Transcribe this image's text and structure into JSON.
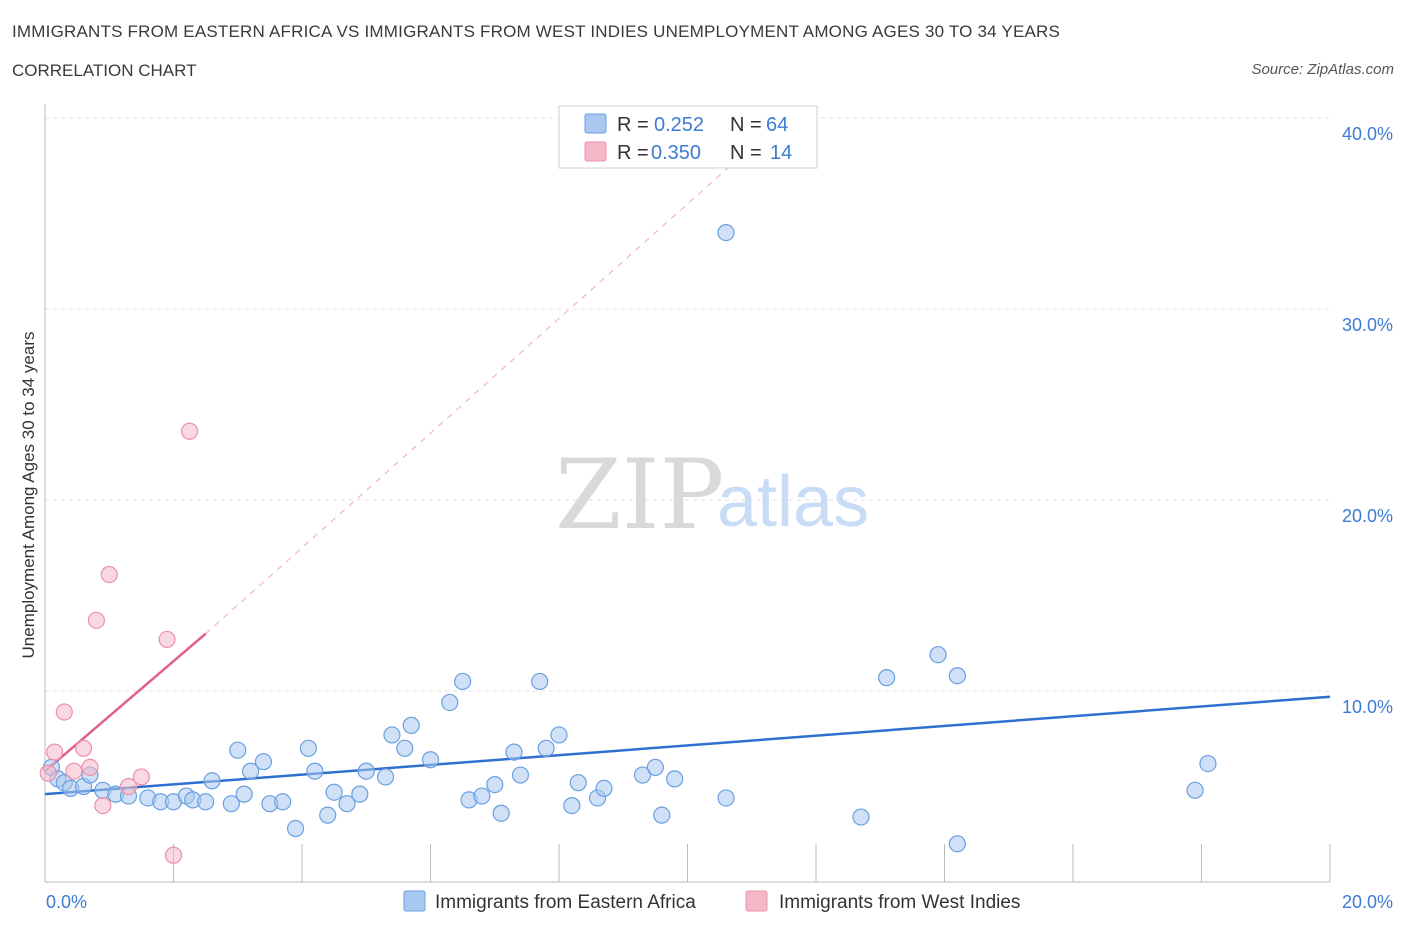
{
  "header": {
    "title": "IMMIGRANTS FROM EASTERN AFRICA VS IMMIGRANTS FROM WEST INDIES UNEMPLOYMENT AMONG AGES 30 TO 34 YEARS",
    "subtitle": "CORRELATION CHART",
    "source": "Source: ZipAtlas.com"
  },
  "watermark": {
    "zip": "ZIP",
    "atlas": "atlas"
  },
  "legend": {
    "rows": [
      {
        "r_label": "R =",
        "r_value": "0.252",
        "n_label": "N =",
        "n_value": "64",
        "color": "#a9c8f0"
      },
      {
        "r_label": "R =",
        "r_value": "0.350",
        "n_label": "N =",
        "n_value": "14",
        "color": "#f5b8c8"
      }
    ]
  },
  "bottom_legend": {
    "items": [
      {
        "label": "Immigrants from Eastern Africa",
        "color": "#a9c8f0"
      },
      {
        "label": "Immigrants from West Indies",
        "color": "#f5b8c8"
      }
    ]
  },
  "chart_data": {
    "type": "scatter",
    "title": "IMMIGRANTS FROM EASTERN AFRICA VS IMMIGRANTS FROM WEST INDIES UNEMPLOYMENT AMONG AGES 30 TO 34 YEARS",
    "subtitle": "CORRELATION CHART",
    "xlabel": "",
    "ylabel": "Unemployment Among Ages 30 to 34 years",
    "xlim": [
      0,
      20
    ],
    "ylim": [
      0,
      40
    ],
    "x_tick_labels": [
      "0.0%",
      "20.0%"
    ],
    "y_tick_labels": [
      "10.0%",
      "20.0%",
      "30.0%",
      "40.0%"
    ],
    "y_ticks": [
      10,
      20,
      30,
      40
    ],
    "grid": true,
    "legend_placement": "top-center",
    "series": [
      {
        "name": "Immigrants from Eastern Africa",
        "color": "#a9c8f0",
        "stroke": "#6a9fe0",
        "trend": {
          "x": [
            0,
            20
          ],
          "y": [
            4.6,
            9.7
          ],
          "color": "#2f6fcf"
        },
        "points": [
          [
            0.1,
            6.0
          ],
          [
            0.2,
            5.4
          ],
          [
            0.3,
            5.2
          ],
          [
            0.4,
            4.9
          ],
          [
            0.6,
            5.0
          ],
          [
            0.7,
            5.6
          ],
          [
            0.9,
            4.8
          ],
          [
            1.1,
            4.6
          ],
          [
            1.3,
            4.5
          ],
          [
            1.6,
            4.4
          ],
          [
            1.8,
            4.2
          ],
          [
            2.0,
            4.2
          ],
          [
            2.2,
            4.5
          ],
          [
            2.3,
            4.3
          ],
          [
            2.5,
            4.2
          ],
          [
            2.6,
            5.3
          ],
          [
            2.9,
            4.1
          ],
          [
            3.0,
            6.9
          ],
          [
            3.1,
            4.6
          ],
          [
            3.2,
            5.8
          ],
          [
            3.4,
            6.3
          ],
          [
            3.5,
            4.1
          ],
          [
            3.7,
            4.2
          ],
          [
            3.9,
            2.8
          ],
          [
            4.1,
            7.0
          ],
          [
            4.2,
            5.8
          ],
          [
            4.4,
            3.5
          ],
          [
            4.5,
            4.7
          ],
          [
            4.7,
            4.1
          ],
          [
            4.9,
            4.6
          ],
          [
            5.0,
            5.8
          ],
          [
            5.3,
            5.5
          ],
          [
            5.4,
            7.7
          ],
          [
            5.6,
            7.0
          ],
          [
            5.7,
            8.2
          ],
          [
            6.0,
            6.4
          ],
          [
            6.3,
            9.4
          ],
          [
            6.5,
            10.5
          ],
          [
            6.6,
            4.3
          ],
          [
            6.8,
            4.5
          ],
          [
            7.0,
            5.1
          ],
          [
            7.1,
            3.6
          ],
          [
            7.3,
            6.8
          ],
          [
            7.4,
            5.6
          ],
          [
            7.7,
            10.5
          ],
          [
            7.8,
            7.0
          ],
          [
            8.0,
            7.7
          ],
          [
            8.2,
            4.0
          ],
          [
            8.3,
            5.2
          ],
          [
            8.6,
            4.4
          ],
          [
            8.7,
            4.9
          ],
          [
            9.3,
            5.6
          ],
          [
            9.5,
            6.0
          ],
          [
            9.6,
            3.5
          ],
          [
            9.8,
            5.4
          ],
          [
            10.6,
            34.0
          ],
          [
            10.6,
            4.4
          ],
          [
            12.7,
            3.4
          ],
          [
            13.1,
            10.7
          ],
          [
            13.9,
            11.9
          ],
          [
            14.2,
            10.8
          ],
          [
            14.2,
            2.0
          ],
          [
            17.9,
            4.8
          ],
          [
            18.1,
            6.2
          ]
        ]
      },
      {
        "name": "Immigrants from West Indies",
        "color": "#f5b8c8",
        "stroke": "#ec8fab",
        "trend": {
          "x": [
            0,
            2.5
          ],
          "y": [
            5.8,
            13.0
          ],
          "color": "#e0608a",
          "extended_dashed_to": [
            11.5,
            40
          ]
        },
        "points": [
          [
            0.05,
            5.7
          ],
          [
            0.15,
            6.8
          ],
          [
            0.3,
            8.9
          ],
          [
            0.45,
            5.8
          ],
          [
            0.6,
            7.0
          ],
          [
            0.7,
            6.0
          ],
          [
            0.8,
            13.7
          ],
          [
            0.9,
            4.0
          ],
          [
            1.0,
            16.1
          ],
          [
            1.3,
            5.0
          ],
          [
            1.5,
            5.5
          ],
          [
            1.9,
            12.7
          ],
          [
            2.0,
            1.4
          ],
          [
            2.25,
            23.6
          ]
        ]
      }
    ]
  }
}
